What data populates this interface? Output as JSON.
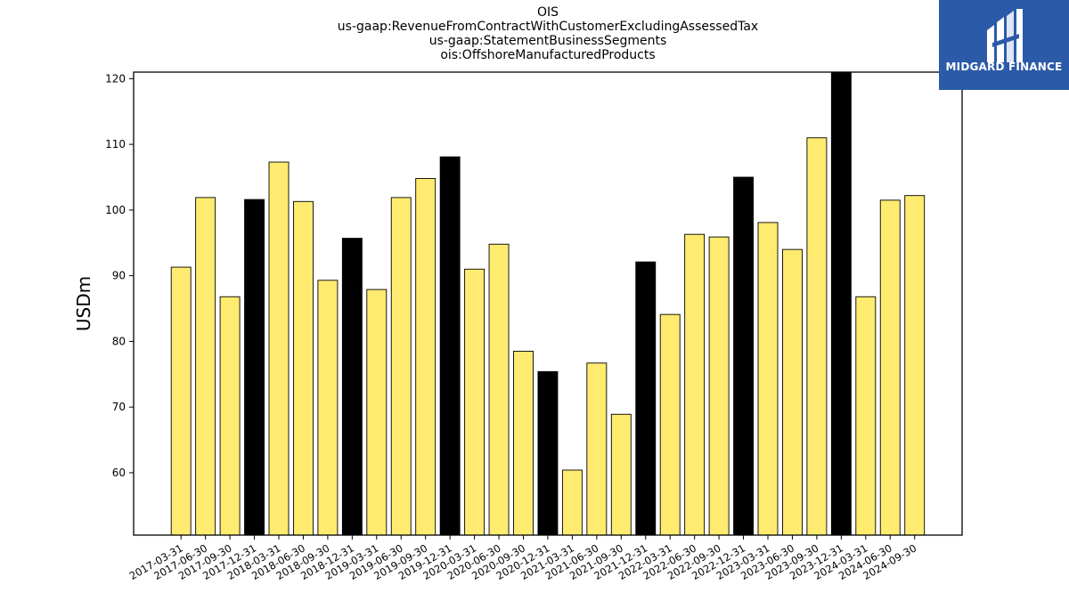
{
  "titles": [
    "OIS",
    "us-gaap:RevenueFromContractWithCustomerExcludingAssessedTax",
    "us-gaap:StatementBusinessSegments",
    "ois:OffshoreManufacturedProducts"
  ],
  "logo": {
    "text": "MIDGARD FINANCE",
    "background": "#2b5aa8"
  },
  "chart_data": {
    "type": "bar",
    "title": "OIS",
    "ylabel": "USDm",
    "xlabel": "",
    "ylim": [
      50.5,
      121
    ],
    "yticks": [
      60,
      70,
      80,
      90,
      100,
      110,
      120
    ],
    "grid": false,
    "colors": {
      "quarter": "#ffeb70",
      "year_end": "#000000"
    },
    "categories": [
      "2017-03-31",
      "2017-06-30",
      "2017-09-30",
      "2017-12-31",
      "2018-03-31",
      "2018-06-30",
      "2018-09-30",
      "2018-12-31",
      "2019-03-31",
      "2019-06-30",
      "2019-09-30",
      "2019-12-31",
      "2020-03-31",
      "2020-06-30",
      "2020-09-30",
      "2020-12-31",
      "2021-03-31",
      "2021-06-30",
      "2021-09-30",
      "2021-12-31",
      "2022-03-31",
      "2022-06-30",
      "2022-09-30",
      "2022-12-31",
      "2023-03-31",
      "2023-06-30",
      "2023-09-30",
      "2023-12-31",
      "2024-03-31",
      "2024-06-30",
      "2024-09-30"
    ],
    "values": [
      91.3,
      101.9,
      86.8,
      101.6,
      107.3,
      101.3,
      89.3,
      95.7,
      87.9,
      101.9,
      104.8,
      108.1,
      91.0,
      94.8,
      78.5,
      75.4,
      60.4,
      76.7,
      68.9,
      92.1,
      84.1,
      96.3,
      95.9,
      105.0,
      98.1,
      94.0,
      111.0,
      125.0,
      86.8,
      101.5,
      102.2
    ]
  }
}
